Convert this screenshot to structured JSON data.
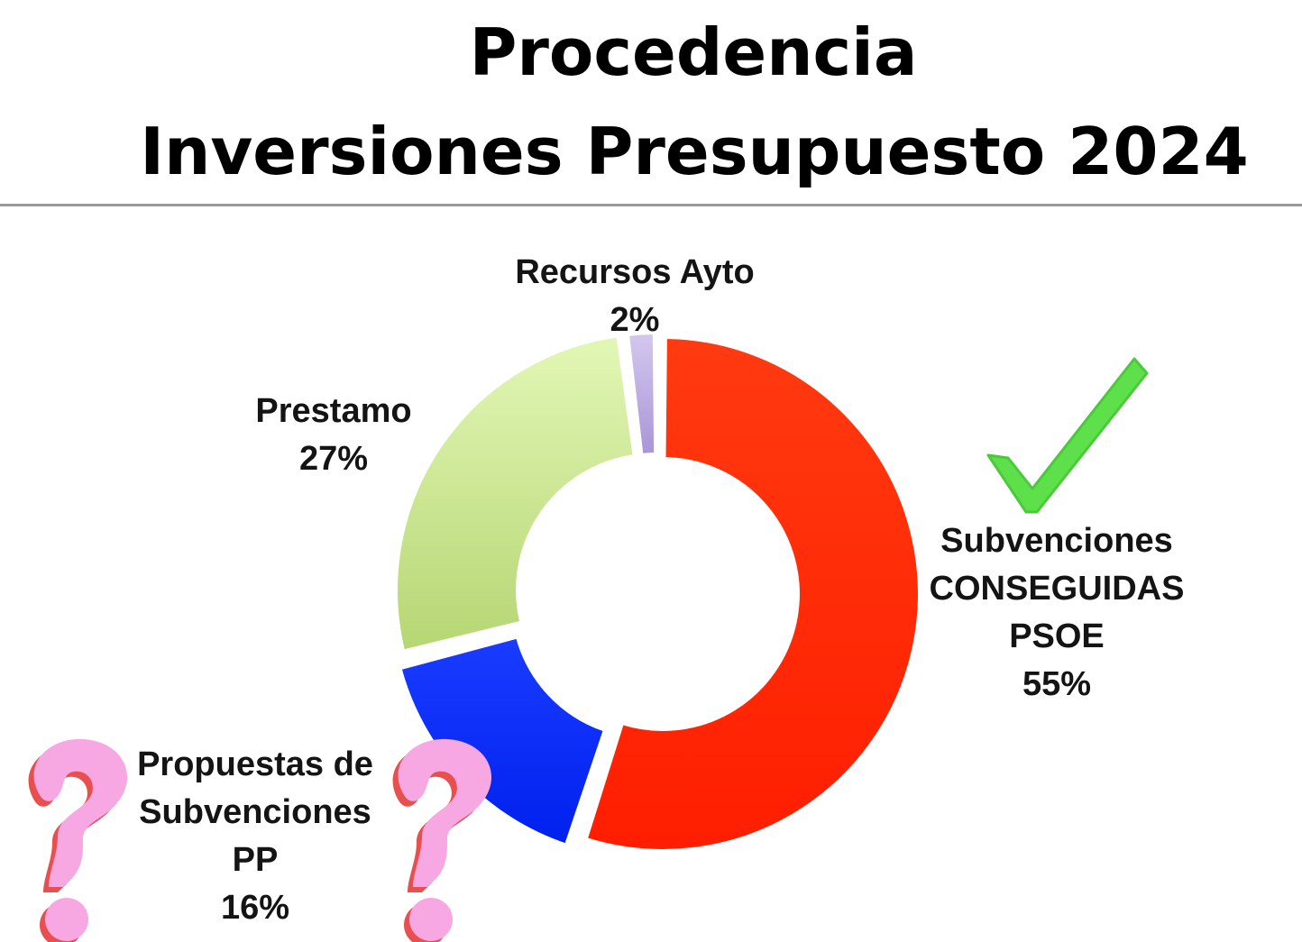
{
  "title": {
    "line1": "Procedencia",
    "line2": "Inversiones Presupuesto 2024"
  },
  "colors": {
    "background": "#ffffff",
    "divider": "#9a9a9a",
    "checkmark": "#5ee04a",
    "question_mark_fill": "#f7a8e3",
    "question_mark_shadow": "#e85050"
  },
  "icons": [
    "checkmark-icon",
    "question-mark-icon",
    "question-mark-icon"
  ],
  "chart_data": {
    "type": "donut",
    "title": "Procedencia Inversiones Presupuesto 2024",
    "slices": [
      {
        "label_lines": [
          "Subvenciones",
          "CONSEGUIDAS",
          "PSOE"
        ],
        "value": 55,
        "value_label": "55%",
        "color": "#ff2a00"
      },
      {
        "label_lines": [
          "Propuestas de",
          "Subvenciones",
          "PP"
        ],
        "value": 16,
        "value_label": "16%",
        "color": "#0a2aff"
      },
      {
        "label_lines": [
          "Prestamo"
        ],
        "value": 27,
        "value_label": "27%",
        "color": "#cfe99a"
      },
      {
        "label_lines": [
          "Recursos Ayto"
        ],
        "value": 2,
        "value_label": "2%",
        "color": "#c2b3e3"
      }
    ],
    "legend": "none",
    "labels": "outside"
  }
}
